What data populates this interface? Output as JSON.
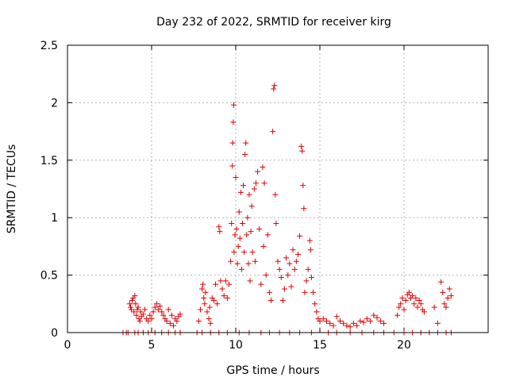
{
  "chart_data": {
    "type": "scatter",
    "title": "Day 232 of 2022, SRMTID for receiver kirg",
    "xlabel": "GPS time / hours",
    "ylabel": "SRMTID / TECUs",
    "xlim": [
      0,
      25
    ],
    "ylim": [
      0,
      2.5
    ],
    "x_ticks": [
      0,
      5,
      10,
      15,
      20
    ],
    "x_tick_labels": [
      "0",
      "5",
      "10",
      "15",
      "20"
    ],
    "y_ticks": [
      0,
      0.5,
      1,
      1.5,
      2,
      2.5
    ],
    "y_tick_labels": [
      "0",
      "0.5",
      "1",
      "1.5",
      "2",
      "2.5"
    ],
    "grid": true,
    "marker": "+",
    "series": [
      {
        "name": "kirg",
        "color": "#e00000",
        "points": [
          [
            3.3,
            0
          ],
          [
            3.5,
            0
          ],
          [
            3.6,
            0
          ],
          [
            3.7,
            0.25
          ],
          [
            3.75,
            0.22
          ],
          [
            3.8,
            0.2
          ],
          [
            3.85,
            0.28
          ],
          [
            3.9,
            0.3
          ],
          [
            3.95,
            0.18
          ],
          [
            4.0,
            0.32
          ],
          [
            4.05,
            0.25
          ],
          [
            4.1,
            0.15
          ],
          [
            4.15,
            0.2
          ],
          [
            4.2,
            0.22
          ],
          [
            4.25,
            0.12
          ],
          [
            4.3,
            0.1
          ],
          [
            4.35,
            0.18
          ],
          [
            4.4,
            0.14
          ],
          [
            4.5,
            0.16
          ],
          [
            4.6,
            0.2
          ],
          [
            4.7,
            0.12
          ],
          [
            4.8,
            0.1
          ],
          [
            4.9,
            0.15
          ],
          [
            4.0,
            0
          ],
          [
            4.2,
            0
          ],
          [
            4.5,
            0
          ],
          [
            4.8,
            0
          ],
          [
            5.0,
            0.12
          ],
          [
            5.1,
            0.18
          ],
          [
            5.2,
            0.22
          ],
          [
            5.3,
            0.25
          ],
          [
            5.4,
            0.2
          ],
          [
            5.5,
            0.23
          ],
          [
            5.6,
            0.18
          ],
          [
            5.7,
            0.15
          ],
          [
            5.8,
            0.12
          ],
          [
            5.9,
            0.1
          ],
          [
            6.0,
            0.2
          ],
          [
            6.1,
            0.08
          ],
          [
            6.2,
            0.15
          ],
          [
            6.3,
            0.06
          ],
          [
            6.4,
            0.12
          ],
          [
            6.5,
            0.1
          ],
          [
            6.6,
            0.14
          ],
          [
            6.7,
            0.16
          ],
          [
            5.2,
            0
          ],
          [
            5.6,
            0
          ],
          [
            6.0,
            0
          ],
          [
            6.4,
            0
          ],
          [
            6.7,
            0
          ],
          [
            7.7,
            0
          ],
          [
            7.8,
            0.1
          ],
          [
            7.9,
            0.2
          ],
          [
            8.0,
            0.38
          ],
          [
            8.05,
            0.42
          ],
          [
            8.1,
            0.3
          ],
          [
            8.15,
            0.25
          ],
          [
            8.2,
            0.35
          ],
          [
            8.3,
            0.18
          ],
          [
            8.4,
            0.12
          ],
          [
            8.45,
            0.22
          ],
          [
            8.5,
            0.08
          ],
          [
            8.6,
            0.3
          ],
          [
            8.7,
            0.28
          ],
          [
            8.8,
            0.42
          ],
          [
            8.9,
            0.25
          ],
          [
            9.0,
            0.92
          ],
          [
            9.05,
            0.88
          ],
          [
            9.1,
            0.45
          ],
          [
            9.2,
            0.38
          ],
          [
            9.3,
            0.32
          ],
          [
            9.4,
            0.45
          ],
          [
            9.5,
            0.3
          ],
          [
            9.6,
            0.42
          ],
          [
            9.7,
            0.62
          ],
          [
            9.75,
            0.95
          ],
          [
            9.8,
            1.45
          ],
          [
            9.82,
            1.65
          ],
          [
            9.85,
            1.83
          ],
          [
            9.88,
            1.98
          ],
          [
            9.9,
            0.7
          ],
          [
            9.95,
            0.85
          ],
          [
            10.0,
            1.35
          ],
          [
            10.05,
            0.9
          ],
          [
            10.1,
            0.6
          ],
          [
            10.15,
            0.75
          ],
          [
            10.2,
            1.05
          ],
          [
            10.25,
            0.82
          ],
          [
            10.3,
            1.22
          ],
          [
            10.35,
            0.55
          ],
          [
            10.4,
            0.95
          ],
          [
            10.45,
            1.28
          ],
          [
            10.5,
            0.7
          ],
          [
            10.55,
            1.55
          ],
          [
            10.6,
            1.65
          ],
          [
            10.65,
            0.85
          ],
          [
            10.7,
            1.0
          ],
          [
            10.75,
            0.6
          ],
          [
            10.8,
            1.2
          ],
          [
            10.85,
            0.45
          ],
          [
            10.9,
            0.88
          ],
          [
            10.95,
            1.1
          ],
          [
            11.0,
            0.7
          ],
          [
            11.1,
            1.25
          ],
          [
            11.15,
            0.62
          ],
          [
            11.2,
            1.3
          ],
          [
            11.3,
            1.4
          ],
          [
            11.4,
            0.9
          ],
          [
            11.5,
            0.42
          ],
          [
            11.6,
            1.44
          ],
          [
            11.65,
            0.75
          ],
          [
            11.7,
            1.3
          ],
          [
            11.8,
            0.5
          ],
          [
            11.9,
            0.85
          ],
          [
            12.0,
            0.35
          ],
          [
            12.1,
            0.28
          ],
          [
            12.2,
            1.75
          ],
          [
            12.25,
            2.12
          ],
          [
            12.3,
            2.15
          ],
          [
            12.35,
            1.2
          ],
          [
            12.4,
            0.95
          ],
          [
            12.5,
            0.62
          ],
          [
            12.6,
            0.55
          ],
          [
            12.7,
            0.48
          ],
          [
            12.8,
            0.28
          ],
          [
            12.9,
            0.38
          ],
          [
            13.0,
            0.65
          ],
          [
            13.1,
            0.5
          ],
          [
            13.2,
            0.6
          ],
          [
            13.3,
            0.4
          ],
          [
            13.4,
            0.72
          ],
          [
            13.5,
            0.55
          ],
          [
            13.6,
            0.62
          ],
          [
            13.7,
            0.68
          ],
          [
            13.8,
            0.84
          ],
          [
            13.9,
            1.62
          ],
          [
            13.95,
            1.58
          ],
          [
            14.0,
            1.28
          ],
          [
            14.05,
            1.08
          ],
          [
            14.1,
            0.35
          ],
          [
            14.2,
            0.45
          ],
          [
            14.3,
            0.55
          ],
          [
            14.4,
            0.8
          ],
          [
            14.45,
            0.72
          ],
          [
            14.5,
            0.48
          ],
          [
            14.6,
            0.35
          ],
          [
            14.7,
            0.25
          ],
          [
            14.8,
            0.18
          ],
          [
            14.9,
            0.12
          ],
          [
            15.0,
            0.1
          ],
          [
            8.0,
            0
          ],
          [
            8.5,
            0
          ],
          [
            9.0,
            0
          ],
          [
            9.5,
            0
          ],
          [
            10.2,
            0
          ],
          [
            10.8,
            0
          ],
          [
            11.5,
            0
          ],
          [
            12.0,
            0
          ],
          [
            12.6,
            0
          ],
          [
            13.2,
            0
          ],
          [
            13.8,
            0
          ],
          [
            14.5,
            0
          ],
          [
            15.2,
            0.12
          ],
          [
            15.4,
            0.1
          ],
          [
            15.6,
            0.08
          ],
          [
            15.8,
            0.06
          ],
          [
            16.0,
            0.14
          ],
          [
            16.2,
            0.1
          ],
          [
            16.4,
            0.08
          ],
          [
            16.6,
            0.06
          ],
          [
            16.8,
            0.05
          ],
          [
            17.0,
            0.08
          ],
          [
            17.2,
            0.06
          ],
          [
            17.4,
            0.1
          ],
          [
            17.6,
            0.09
          ],
          [
            17.8,
            0.12
          ],
          [
            18.0,
            0.1
          ],
          [
            18.2,
            0.15
          ],
          [
            18.4,
            0.13
          ],
          [
            18.6,
            0.1
          ],
          [
            18.8,
            0.08
          ],
          [
            15.5,
            0
          ],
          [
            16.0,
            0
          ],
          [
            16.8,
            0
          ],
          [
            17.5,
            0
          ],
          [
            18.2,
            0
          ],
          [
            18.8,
            0
          ],
          [
            19.4,
            0
          ],
          [
            19.6,
            0.15
          ],
          [
            19.7,
            0.22
          ],
          [
            19.8,
            0.25
          ],
          [
            19.9,
            0.3
          ],
          [
            20.0,
            0.2
          ],
          [
            20.1,
            0.28
          ],
          [
            20.2,
            0.33
          ],
          [
            20.3,
            0.35
          ],
          [
            20.4,
            0.3
          ],
          [
            20.5,
            0.32
          ],
          [
            20.6,
            0.25
          ],
          [
            20.7,
            0.3
          ],
          [
            20.8,
            0.22
          ],
          [
            20.9,
            0.28
          ],
          [
            21.0,
            0.25
          ],
          [
            21.1,
            0.2
          ],
          [
            21.2,
            0.18
          ],
          [
            20.0,
            0
          ],
          [
            20.5,
            0
          ],
          [
            21.0,
            0
          ],
          [
            21.5,
            0
          ],
          [
            21.8,
            0.22
          ],
          [
            22.0,
            0.08
          ],
          [
            22.2,
            0.44
          ],
          [
            22.3,
            0.35
          ],
          [
            22.4,
            0.25
          ],
          [
            22.5,
            0.22
          ],
          [
            22.6,
            0.3
          ],
          [
            22.7,
            0.38
          ],
          [
            22.8,
            0.32
          ],
          [
            22.0,
            0
          ],
          [
            22.5,
            0
          ],
          [
            22.8,
            0
          ]
        ]
      }
    ]
  }
}
